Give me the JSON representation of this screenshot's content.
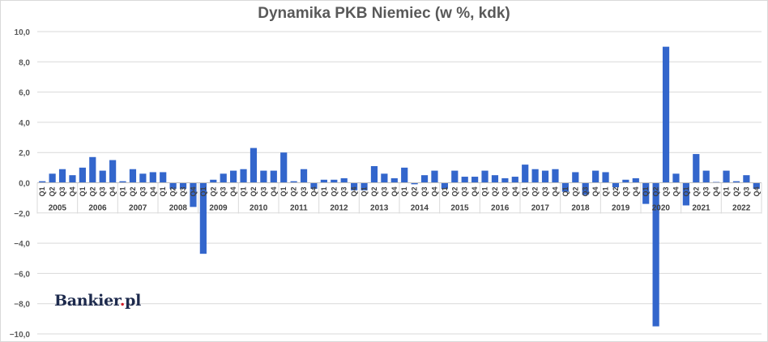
{
  "chart_data": {
    "type": "bar",
    "title": "Dynamika PKB Niemiec (w %, kdk)",
    "xlabel": "",
    "ylabel": "",
    "ylim": [
      -10,
      10
    ],
    "yticks": [
      "10,0",
      "8,0",
      "6,0",
      "4,0",
      "2,0",
      "0,0",
      "−2,0",
      "−4,0",
      "−6,0",
      "−8,0",
      "−10,0"
    ],
    "ytick_values": [
      10,
      8,
      6,
      4,
      2,
      0,
      -2,
      -4,
      -6,
      -8,
      -10
    ],
    "grid": true,
    "bar_color": "#3366cc",
    "quarter_labels": [
      "Q1",
      "Q2",
      "Q3",
      "Q4"
    ],
    "years": [
      "2005",
      "2006",
      "2007",
      "2008",
      "2009",
      "2010",
      "2011",
      "2012",
      "2013",
      "2014",
      "2015",
      "2016",
      "2017",
      "2018",
      "2019",
      "2020",
      "2021",
      "2022"
    ],
    "values": [
      0.1,
      0.6,
      0.9,
      0.5,
      1.0,
      1.7,
      0.8,
      1.5,
      0.1,
      0.9,
      0.6,
      0.7,
      0.7,
      -0.4,
      -0.4,
      -1.6,
      -4.7,
      0.2,
      0.6,
      0.8,
      0.9,
      2.3,
      0.8,
      0.8,
      2.0,
      0.1,
      0.9,
      -0.4,
      0.2,
      0.2,
      0.3,
      -0.5,
      -0.5,
      1.1,
      0.6,
      0.3,
      1.0,
      -0.1,
      0.5,
      0.8,
      -0.4,
      0.8,
      0.4,
      0.4,
      0.8,
      0.5,
      0.3,
      0.4,
      1.2,
      0.9,
      0.8,
      0.9,
      -0.6,
      0.7,
      -0.8,
      0.8,
      0.7,
      -0.3,
      0.2,
      0.3,
      -1.4,
      -9.5,
      9.0,
      0.6,
      -1.5,
      1.9,
      0.8,
      0.0,
      0.8,
      0.1,
      0.5,
      -0.4
    ]
  },
  "logo": {
    "name": "Bankier",
    "dot": ".",
    "suffix": "pl"
  }
}
